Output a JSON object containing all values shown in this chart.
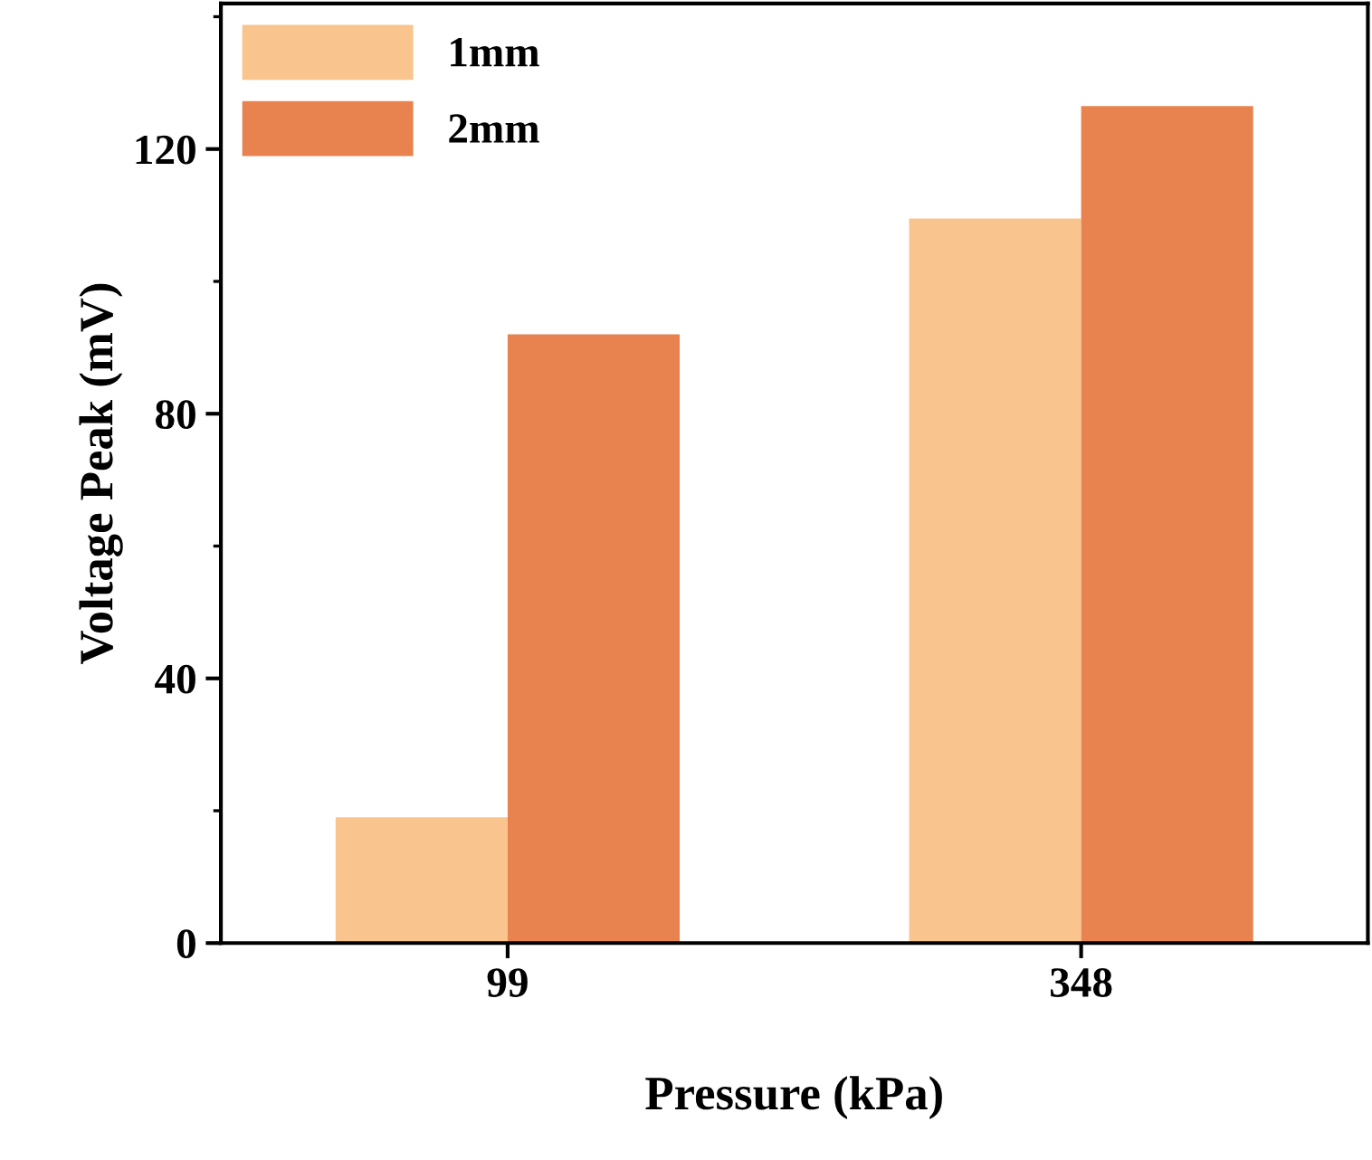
{
  "chart_data": {
    "type": "bar",
    "xlabel": "Pressure (kPa)",
    "ylabel": "Voltage Peak (mV)",
    "categories": [
      "99",
      "348"
    ],
    "series": [
      {
        "name": "1mm",
        "color": "#f9c48e",
        "values": [
          19,
          109.5
        ]
      },
      {
        "name": "2mm",
        "color": "#e8834f",
        "values": [
          92,
          126.5
        ]
      }
    ],
    "ylim": [
      0,
      142
    ],
    "yticks": [
      0,
      40,
      80,
      120
    ],
    "legend": "top left",
    "grid": false
  }
}
